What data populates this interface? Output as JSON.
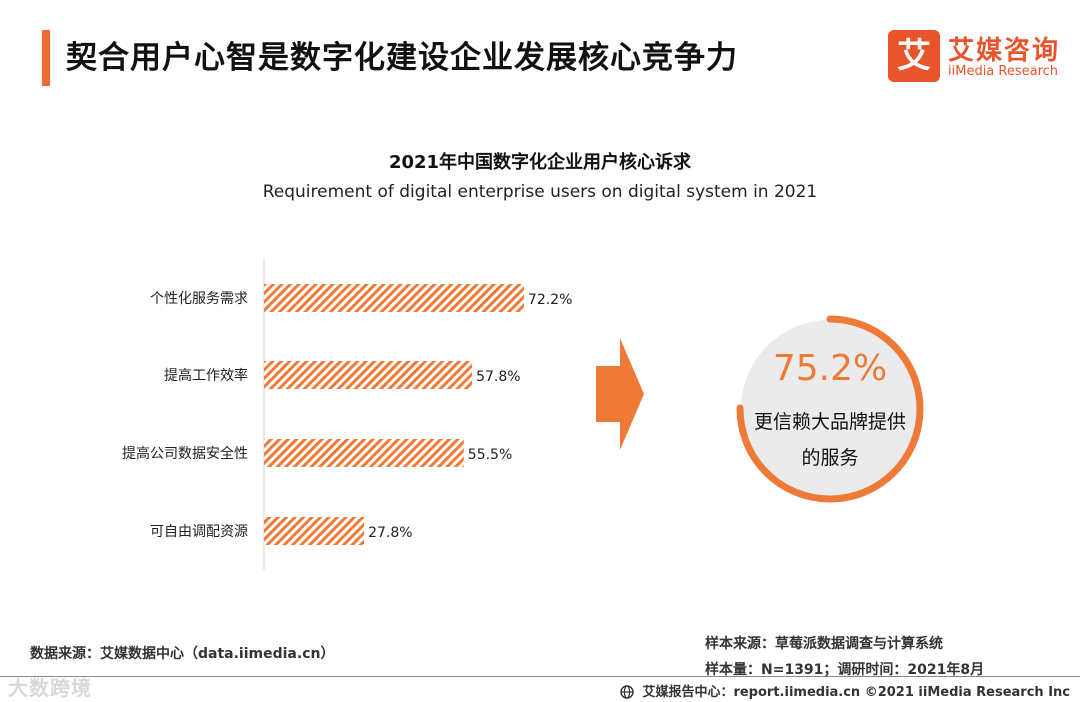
{
  "header": {
    "title": "契合用户心智是数字化建设企业发展核心竞争力",
    "logo_mark": "艾",
    "logo_cn": "艾媒咨询",
    "logo_en": "iiMedia Research"
  },
  "chart_data": {
    "type": "bar",
    "orientation": "horizontal",
    "title": "2021年中国数字化企业用户核心诉求",
    "subtitle": "Requirement of digital enterprise users on digital system in 2021",
    "categories": [
      "个性化服务需求",
      "提高工作效率",
      "提高公司数据安全性",
      "可自由调配资源"
    ],
    "values": [
      72.2,
      57.8,
      55.5,
      27.8
    ],
    "value_labels": [
      "72.2%",
      "57.8%",
      "55.5%",
      "27.8%"
    ],
    "unit": "%",
    "xlim": [
      0,
      100
    ],
    "grid": false,
    "legend": "none",
    "bar_color": "#ef7a38"
  },
  "callout": {
    "value": "75.2%",
    "text": "更信赖大品牌提供的服务",
    "progress": 0.752,
    "ring_color": "#ef7a38",
    "fill_color": "#ebebeb"
  },
  "source": {
    "data_source": "数据来源：艾媒数据中心（data.iimedia.cn）",
    "sample_source": "样本来源：草莓派数据调查与计算系统",
    "sample_size": "样本量：N=1391；调研时间：2021年8月"
  },
  "footer": {
    "text": "艾媒报告中心：report.iimedia.cn  ©2021  iiMedia Research  Inc",
    "watermark": "大数跨境"
  },
  "colors": {
    "accent": "#ef6c2c",
    "brand": "#e8542b"
  }
}
